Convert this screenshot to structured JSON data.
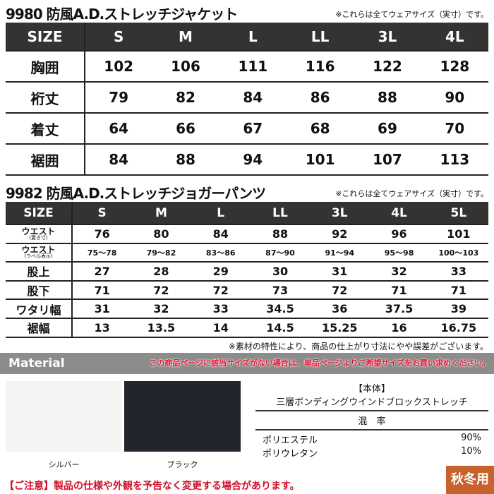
{
  "jacket": {
    "title": "9980 防風A.D.ストレッチジャケット",
    "note": "※これらは全てウェアサイズ（実寸）です。",
    "header": [
      "SIZE",
      "S",
      "M",
      "L",
      "LL",
      "3L",
      "4L"
    ],
    "rows": [
      [
        "胸囲",
        "102",
        "106",
        "111",
        "116",
        "122",
        "128"
      ],
      [
        "裄丈",
        "79",
        "82",
        "84",
        "86",
        "88",
        "90"
      ],
      [
        "着丈",
        "64",
        "66",
        "67",
        "68",
        "69",
        "70"
      ],
      [
        "裾囲",
        "84",
        "88",
        "94",
        "101",
        "107",
        "113"
      ]
    ]
  },
  "pants": {
    "title": "9982 防風A.D.ストレッチジョガーパンツ",
    "note": "※これらは全てウェアサイズ（実寸）です。",
    "header": [
      "SIZE",
      "S",
      "M",
      "L",
      "LL",
      "3L",
      "4L",
      "5L"
    ],
    "waist1": {
      "label": "ウエスト",
      "sub": "(置き寸)",
      "values": [
        "76",
        "80",
        "84",
        "88",
        "92",
        "96",
        "101"
      ]
    },
    "waist2": {
      "label": "ウエスト",
      "sub": "(ラベル表示)",
      "values": [
        "75〜78",
        "79〜82",
        "83〜86",
        "87〜90",
        "91〜94",
        "95〜98",
        "100〜103"
      ]
    },
    "rows": [
      [
        "股上",
        "27",
        "28",
        "29",
        "30",
        "31",
        "32",
        "33"
      ],
      [
        "股下",
        "71",
        "72",
        "72",
        "73",
        "72",
        "71",
        "71"
      ],
      [
        "ワタリ幅",
        "31",
        "32",
        "33",
        "34.5",
        "36",
        "37.5",
        "39"
      ],
      [
        "裾幅",
        "13",
        "13.5",
        "14",
        "14.5",
        "15.25",
        "16",
        "16.75"
      ]
    ]
  },
  "footnote": "※素材の特性により、商品の仕上がり寸法にやや誤差がございます。",
  "material": {
    "heading": "Material",
    "warning": "この商品ページに該当サイズがない場合は、単品ページよりご希望サイズをお買い求めください。",
    "colors": [
      {
        "name": "シルバー",
        "hex": "#f4f4f4"
      },
      {
        "name": "ブラック",
        "hex": "#23252c"
      }
    ],
    "body_label": "【本体】",
    "fabric": "三層ボンディングウインドブロックストレッチ",
    "ratio_label": "混　率",
    "composition": [
      {
        "fiber": "ポリエステル",
        "pct": "90%"
      },
      {
        "fiber": "ポリウレタン",
        "pct": "10%"
      }
    ]
  },
  "caution": "【ご注意】製品の仕様や外観を予告なく変更する場合があります。",
  "season_badge": "秋冬用"
}
